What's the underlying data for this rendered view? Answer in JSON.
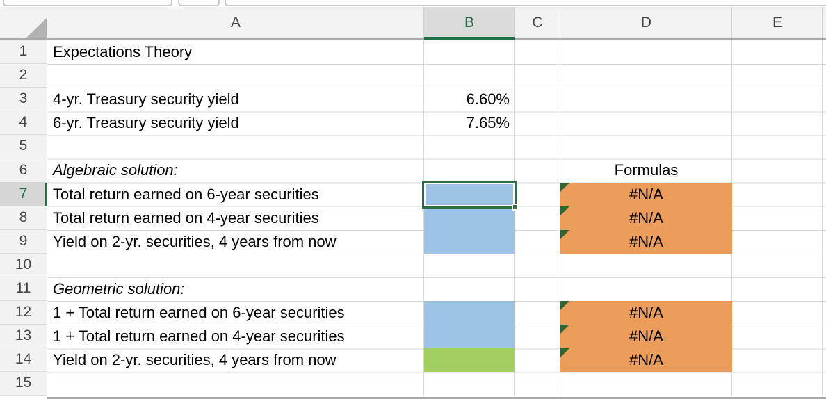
{
  "sheet": {
    "column_headers": [
      "A",
      "B",
      "C",
      "D",
      "E"
    ],
    "row_headers": [
      "1",
      "2",
      "3",
      "4",
      "5",
      "6",
      "7",
      "8",
      "9",
      "10",
      "11",
      "12",
      "13",
      "14",
      "15"
    ],
    "selected_column": "B",
    "selected_row": "7",
    "selected_cell": "B7",
    "cells": {
      "a1": "Expectations Theory",
      "a3": "4-yr. Treasury security yield",
      "b3": "6.60%",
      "a4": "6-yr. Treasury security yield",
      "b4": "7.65%",
      "a6": "Algebraic solution:",
      "d6": "Formulas",
      "a7": "Total return earned on 6-year securities",
      "d7": "#N/A",
      "a8": "Total return earned on 4-year securities",
      "d8": "#N/A",
      "a9": "Yield on 2-yr. securities, 4 years from now",
      "d9": "#N/A",
      "a11": "Geometric solution:",
      "a12": "1 + Total return earned on 6-year securities",
      "d12": "#N/A",
      "a13": "1 + Total return earned on 4-year securities",
      "d13": "#N/A",
      "a14": "Yield on 2-yr. securities, 4 years from now",
      "d14": "#N/A"
    },
    "colors": {
      "input_cell_blue": "#9DC3E6",
      "result_cell_green": "#A3CE62",
      "formula_cell_orange": "#EC9C5B",
      "selection_green": "#2F6B43",
      "header_selected_green": "#217346",
      "error_indicator_green": "#2D6831"
    }
  }
}
